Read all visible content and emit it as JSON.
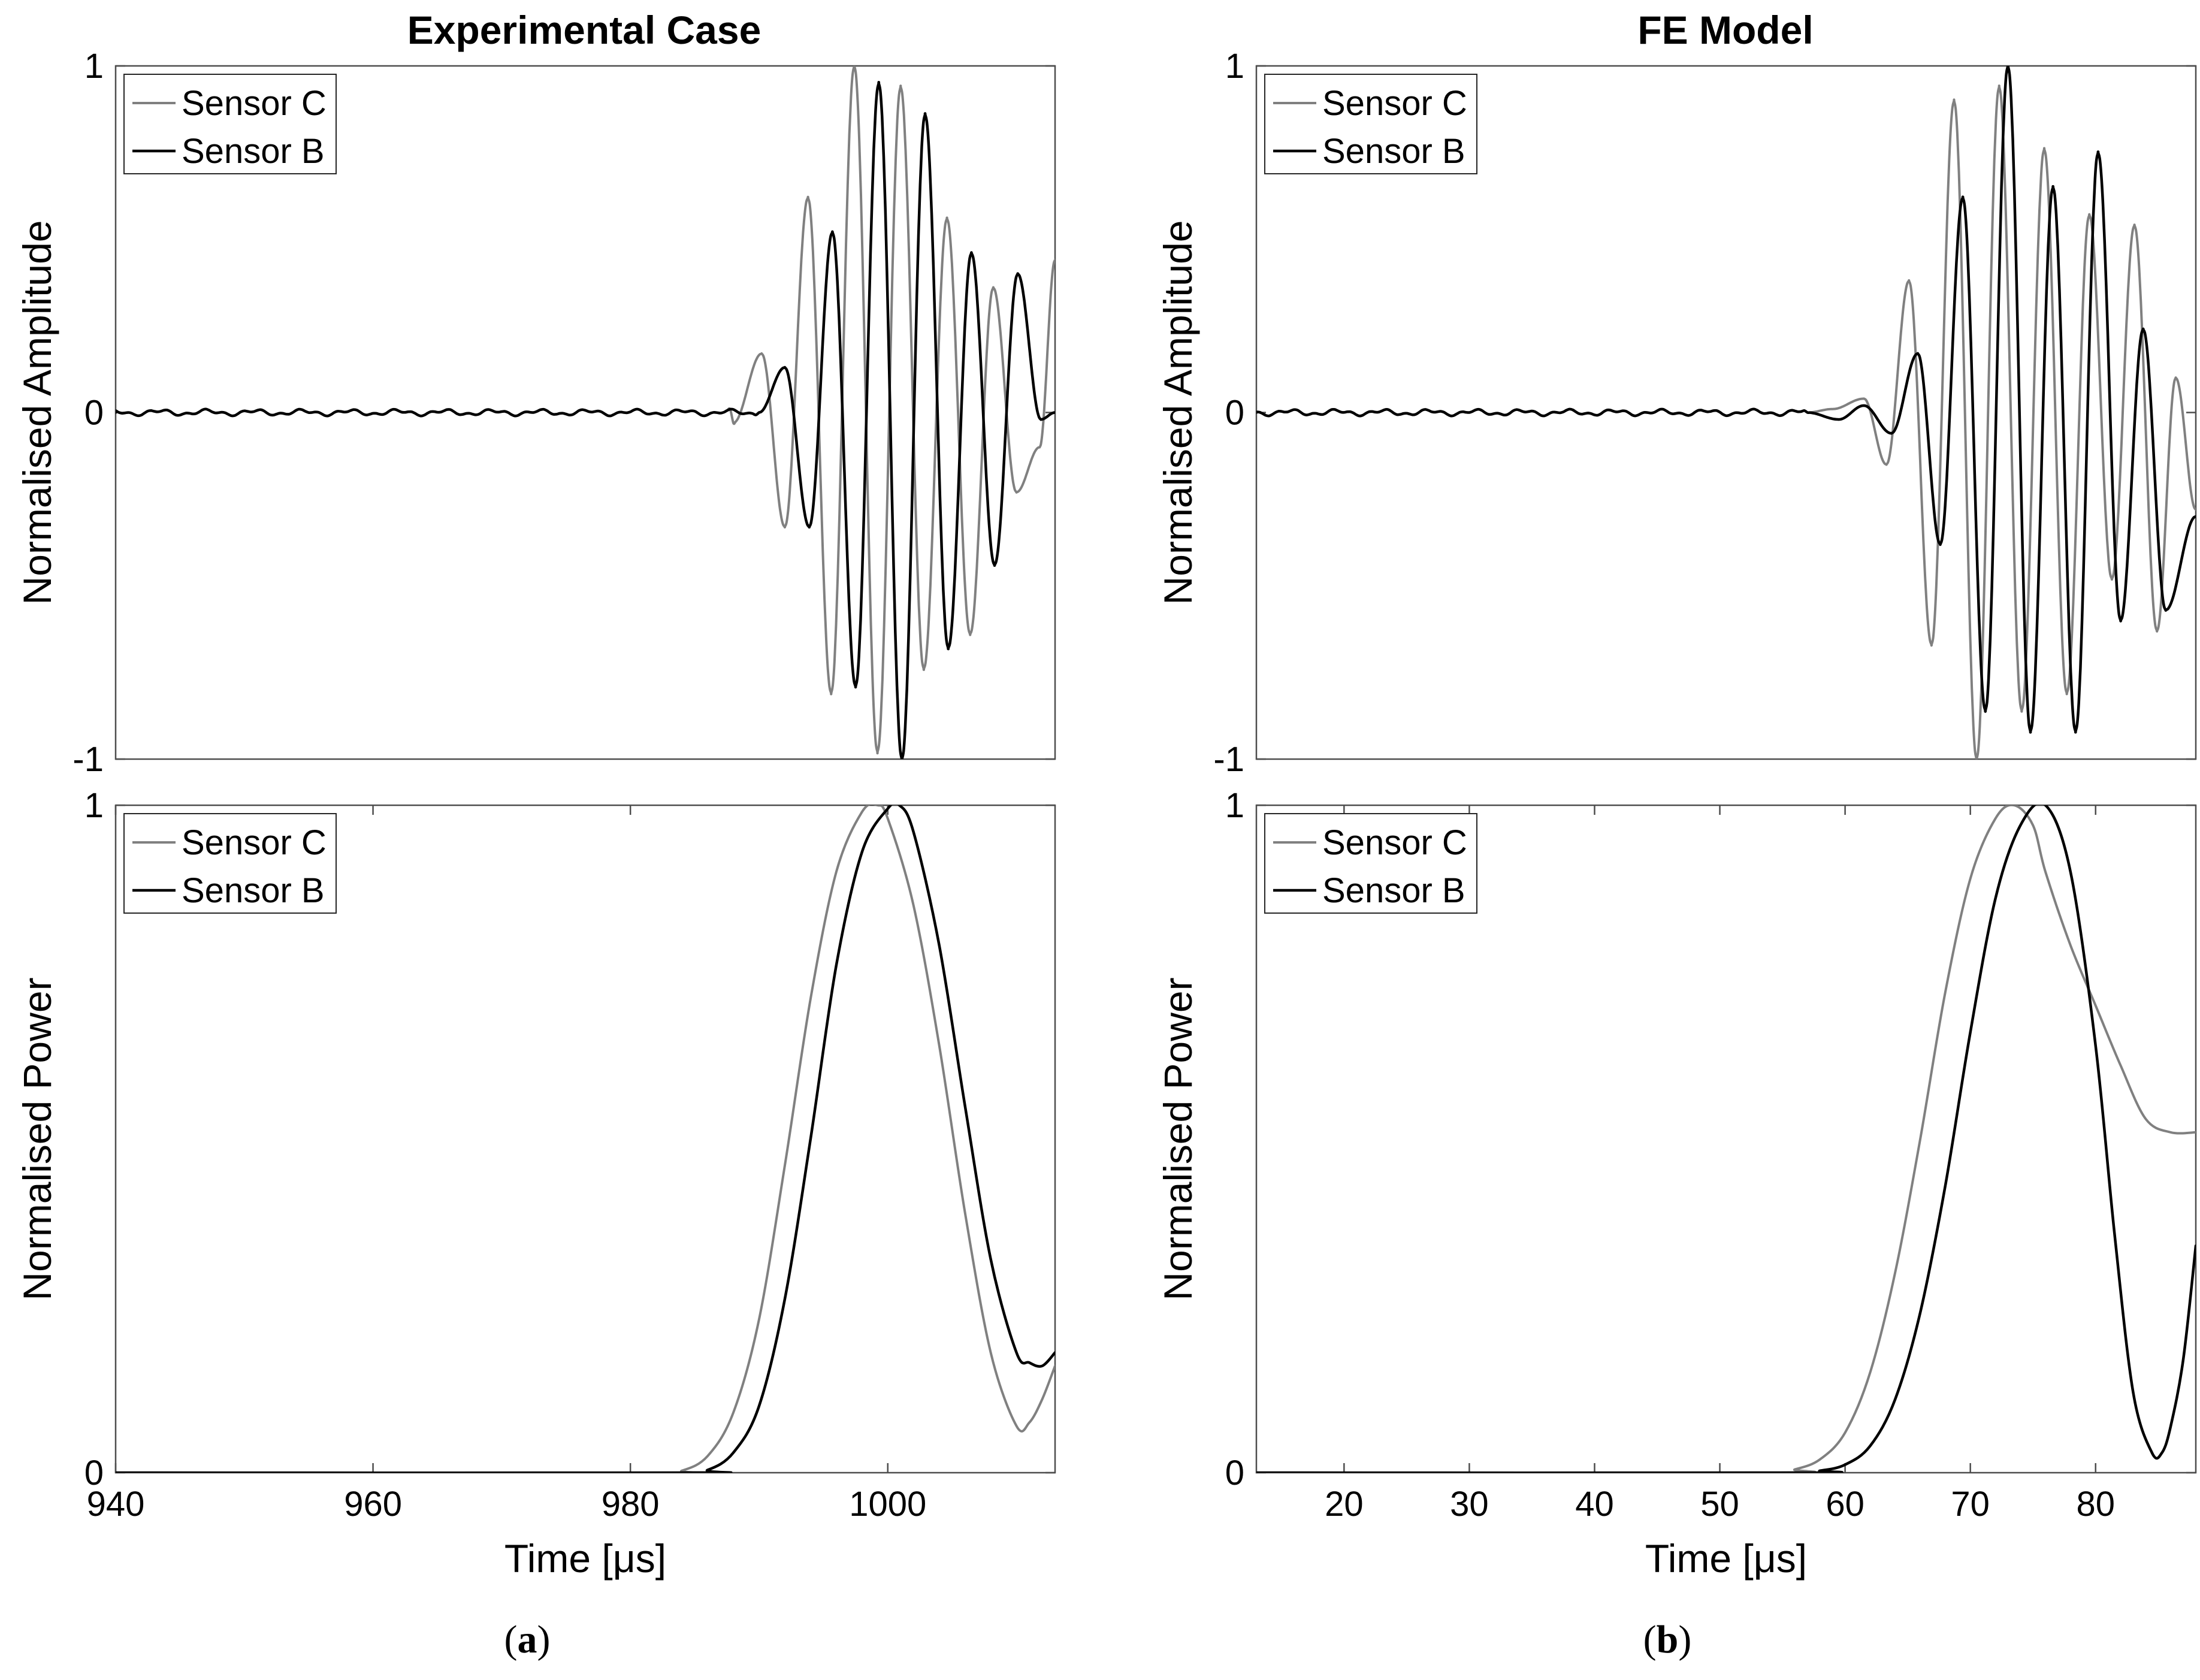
{
  "colors": {
    "sensor_c": "#808080",
    "sensor_b": "#000000",
    "axes": "#4d4d4d"
  },
  "chart_data": [
    {
      "id": "a_amplitude",
      "panel": "a",
      "type": "line",
      "title": "Experimental Case",
      "xlabel": "",
      "ylabel": "Normalised Amplitude",
      "xlim": [
        940,
        1013
      ],
      "ylim": [
        -1,
        1
      ],
      "xticks": [],
      "yticks": [
        -1,
        0,
        1
      ],
      "ytick_labels": [
        "-1",
        "0",
        "1"
      ],
      "legend": [
        "Sensor C",
        "Sensor B"
      ],
      "legend_position": "top-left",
      "series": [
        {
          "name": "Sensor C",
          "kind": "burst",
          "t_start": 988.5,
          "freq_mhz": 0.55,
          "envelope_center": 999.3,
          "envelope_sigma": 7.2,
          "phase_at_center": 0.0,
          "noise_amplitude": 0.004,
          "peaks": [
            {
              "x": 988.0,
              "y": -0.03
            },
            {
              "x": 990.2,
              "y": 0.17
            },
            {
              "x": 992.0,
              "y": -0.33
            },
            {
              "x": 993.8,
              "y": 0.62
            },
            {
              "x": 995.6,
              "y": -0.81
            },
            {
              "x": 997.4,
              "y": 1.0
            },
            {
              "x": 999.2,
              "y": -0.98
            },
            {
              "x": 1001.0,
              "y": 0.94
            },
            {
              "x": 1002.8,
              "y": -0.74
            },
            {
              "x": 1004.6,
              "y": 0.56
            },
            {
              "x": 1006.4,
              "y": -0.64
            },
            {
              "x": 1008.2,
              "y": 0.36
            },
            {
              "x": 1010.0,
              "y": -0.23
            },
            {
              "x": 1011.8,
              "y": -0.1
            },
            {
              "x": 1013.0,
              "y": 0.44
            }
          ]
        },
        {
          "name": "Sensor B",
          "kind": "burst",
          "peaks": [
            {
              "x": 990.0,
              "y": 0.0
            },
            {
              "x": 992.0,
              "y": 0.13
            },
            {
              "x": 993.9,
              "y": -0.33
            },
            {
              "x": 995.7,
              "y": 0.52
            },
            {
              "x": 997.5,
              "y": -0.79
            },
            {
              "x": 999.3,
              "y": 0.95
            },
            {
              "x": 1001.1,
              "y": -1.0
            },
            {
              "x": 1002.9,
              "y": 0.86
            },
            {
              "x": 1004.7,
              "y": -0.68
            },
            {
              "x": 1006.5,
              "y": 0.46
            },
            {
              "x": 1008.3,
              "y": -0.44
            },
            {
              "x": 1010.1,
              "y": 0.4
            },
            {
              "x": 1011.9,
              "y": -0.02
            },
            {
              "x": 1013.0,
              "y": 0.0
            }
          ]
        }
      ]
    },
    {
      "id": "b_amplitude",
      "panel": "b",
      "type": "line",
      "title": "FE Model",
      "xlabel": "",
      "ylabel": "Normalised Amplitude",
      "xlim": [
        13,
        88
      ],
      "ylim": [
        -1,
        1
      ],
      "xticks": [],
      "yticks": [
        -1,
        0,
        1
      ],
      "ytick_labels": [
        "-1",
        "0",
        "1"
      ],
      "legend": [
        "Sensor C",
        "Sensor B"
      ],
      "legend_position": "top-left",
      "series": [
        {
          "name": "Sensor C",
          "kind": "burst",
          "peaks": [
            {
              "x": 57.0,
              "y": 0.0
            },
            {
              "x": 59.0,
              "y": 0.01
            },
            {
              "x": 61.5,
              "y": 0.04
            },
            {
              "x": 63.3,
              "y": -0.15
            },
            {
              "x": 65.1,
              "y": 0.38
            },
            {
              "x": 66.9,
              "y": -0.67
            },
            {
              "x": 68.7,
              "y": 0.9
            },
            {
              "x": 70.5,
              "y": -1.0
            },
            {
              "x": 72.3,
              "y": 0.94
            },
            {
              "x": 74.1,
              "y": -0.86
            },
            {
              "x": 75.9,
              "y": 0.76
            },
            {
              "x": 77.7,
              "y": -0.81
            },
            {
              "x": 79.5,
              "y": 0.57
            },
            {
              "x": 81.3,
              "y": -0.48
            },
            {
              "x": 83.1,
              "y": 0.54
            },
            {
              "x": 84.9,
              "y": -0.63
            },
            {
              "x": 86.4,
              "y": 0.1
            },
            {
              "x": 88.0,
              "y": -0.28
            }
          ]
        },
        {
          "name": "Sensor B",
          "kind": "burst",
          "peaks": [
            {
              "x": 57.0,
              "y": 0.0
            },
            {
              "x": 59.5,
              "y": -0.02
            },
            {
              "x": 61.5,
              "y": 0.02
            },
            {
              "x": 63.7,
              "y": -0.06
            },
            {
              "x": 65.8,
              "y": 0.17
            },
            {
              "x": 67.6,
              "y": -0.38
            },
            {
              "x": 69.4,
              "y": 0.62
            },
            {
              "x": 71.2,
              "y": -0.86
            },
            {
              "x": 73.0,
              "y": 1.0
            },
            {
              "x": 74.8,
              "y": -0.92
            },
            {
              "x": 76.6,
              "y": 0.65
            },
            {
              "x": 78.4,
              "y": -0.92
            },
            {
              "x": 80.2,
              "y": 0.75
            },
            {
              "x": 82.0,
              "y": -0.6
            },
            {
              "x": 83.8,
              "y": 0.24
            },
            {
              "x": 85.6,
              "y": -0.57
            },
            {
              "x": 88.0,
              "y": -0.3
            }
          ]
        }
      ]
    },
    {
      "id": "a_power",
      "panel": "a",
      "type": "line",
      "title": "",
      "xlabel": "Time [μs]",
      "ylabel": "Normalised Power",
      "xlim": [
        940,
        1013
      ],
      "ylim": [
        0,
        1
      ],
      "xticks": [
        940,
        960,
        980,
        1000
      ],
      "xtick_labels": [
        "940",
        "960",
        "980",
        "1000"
      ],
      "yticks": [
        0,
        1
      ],
      "ytick_labels": [
        "0",
        "1"
      ],
      "legend": [
        "Sensor C",
        "Sensor B"
      ],
      "legend_position": "top-left",
      "series": [
        {
          "name": "Sensor C",
          "x": [
            940,
            982,
            984,
            986,
            988,
            990,
            992,
            994,
            996,
            998,
            999.2,
            1000,
            1002,
            1004,
            1006,
            1008,
            1010,
            1011,
            1012,
            1013
          ],
          "y": [
            0,
            0,
            0.003,
            0.025,
            0.09,
            0.23,
            0.46,
            0.71,
            0.9,
            0.99,
            1.0,
            0.98,
            0.85,
            0.64,
            0.39,
            0.18,
            0.07,
            0.075,
            0.11,
            0.16
          ]
        },
        {
          "name": "Sensor B",
          "x": [
            940,
            984,
            986,
            988,
            990,
            992,
            994,
            996,
            998,
            1000,
            1000.9,
            1002,
            1004,
            1006,
            1008,
            1010,
            1011,
            1012,
            1013
          ],
          "y": [
            0,
            0,
            0.004,
            0.03,
            0.1,
            0.26,
            0.5,
            0.76,
            0.93,
            0.995,
            1.0,
            0.96,
            0.79,
            0.55,
            0.32,
            0.18,
            0.165,
            0.16,
            0.18
          ]
        }
      ]
    },
    {
      "id": "b_power",
      "panel": "b",
      "type": "line",
      "title": "",
      "xlabel": "Time [μs]",
      "ylabel": "Normalised Power",
      "xlim": [
        13,
        88
      ],
      "ylim": [
        0,
        1
      ],
      "xticks": [
        20,
        30,
        40,
        50,
        60,
        70,
        80
      ],
      "xtick_labels": [
        "20",
        "30",
        "40",
        "50",
        "60",
        "70",
        "80"
      ],
      "yticks": [
        0,
        1
      ],
      "ytick_labels": [
        "0",
        "1"
      ],
      "legend": [
        "Sensor C",
        "Sensor B"
      ],
      "legend_position": "top-left",
      "series": [
        {
          "name": "Sensor C",
          "x": [
            13,
            54,
            56,
            58,
            60,
            62,
            64,
            66,
            68,
            70,
            72,
            73.5,
            75,
            76,
            78,
            80,
            82,
            84,
            86,
            88
          ],
          "y": [
            0,
            0,
            0.005,
            0.02,
            0.06,
            0.15,
            0.3,
            0.5,
            0.72,
            0.89,
            0.98,
            1.0,
            0.97,
            0.9,
            0.79,
            0.7,
            0.61,
            0.53,
            0.51,
            0.51
          ]
        },
        {
          "name": "Sensor B",
          "x": [
            13,
            56,
            58,
            60,
            62,
            64,
            66,
            68,
            70,
            72,
            74,
            76,
            78,
            80,
            81.5,
            83,
            84.5,
            85.3,
            86,
            87,
            88
          ],
          "y": [
            0,
            0,
            0.003,
            0.012,
            0.04,
            0.11,
            0.24,
            0.43,
            0.66,
            0.86,
            0.97,
            1.0,
            0.9,
            0.64,
            0.36,
            0.12,
            0.03,
            0.03,
            0.07,
            0.17,
            0.34
          ]
        }
      ]
    }
  ],
  "panel_labels": {
    "a": "(a)",
    "b": "(b)"
  }
}
